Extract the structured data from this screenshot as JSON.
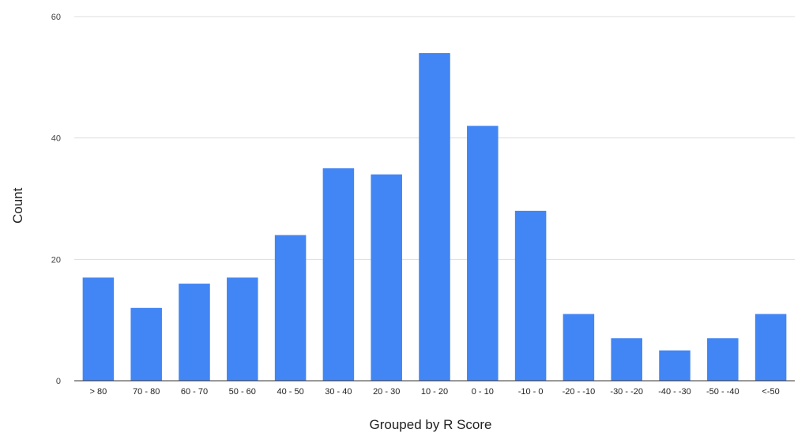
{
  "chart_data": {
    "type": "bar",
    "categories": [
      "> 80",
      "70 - 80",
      "60 - 70",
      "50 - 60",
      "40 - 50",
      "30 - 40",
      "20 - 30",
      "10 - 20",
      "0 - 10",
      "-10 - 0",
      "-20 - -10",
      "-30 - -20",
      "-40 - -30",
      "-50 - -40",
      "<-50"
    ],
    "values": [
      17,
      12,
      16,
      17,
      24,
      35,
      34,
      54,
      42,
      28,
      11,
      7,
      5,
      7,
      11
    ],
    "xlabel": "Grouped by R Score",
    "ylabel": "Count",
    "ylim": [
      0,
      60
    ],
    "yticks": [
      0,
      20,
      40,
      60
    ],
    "grid": true,
    "legend": "none",
    "bar_color": "#4285f4",
    "grid_color": "#dddddd",
    "axis_color": "#333333"
  }
}
